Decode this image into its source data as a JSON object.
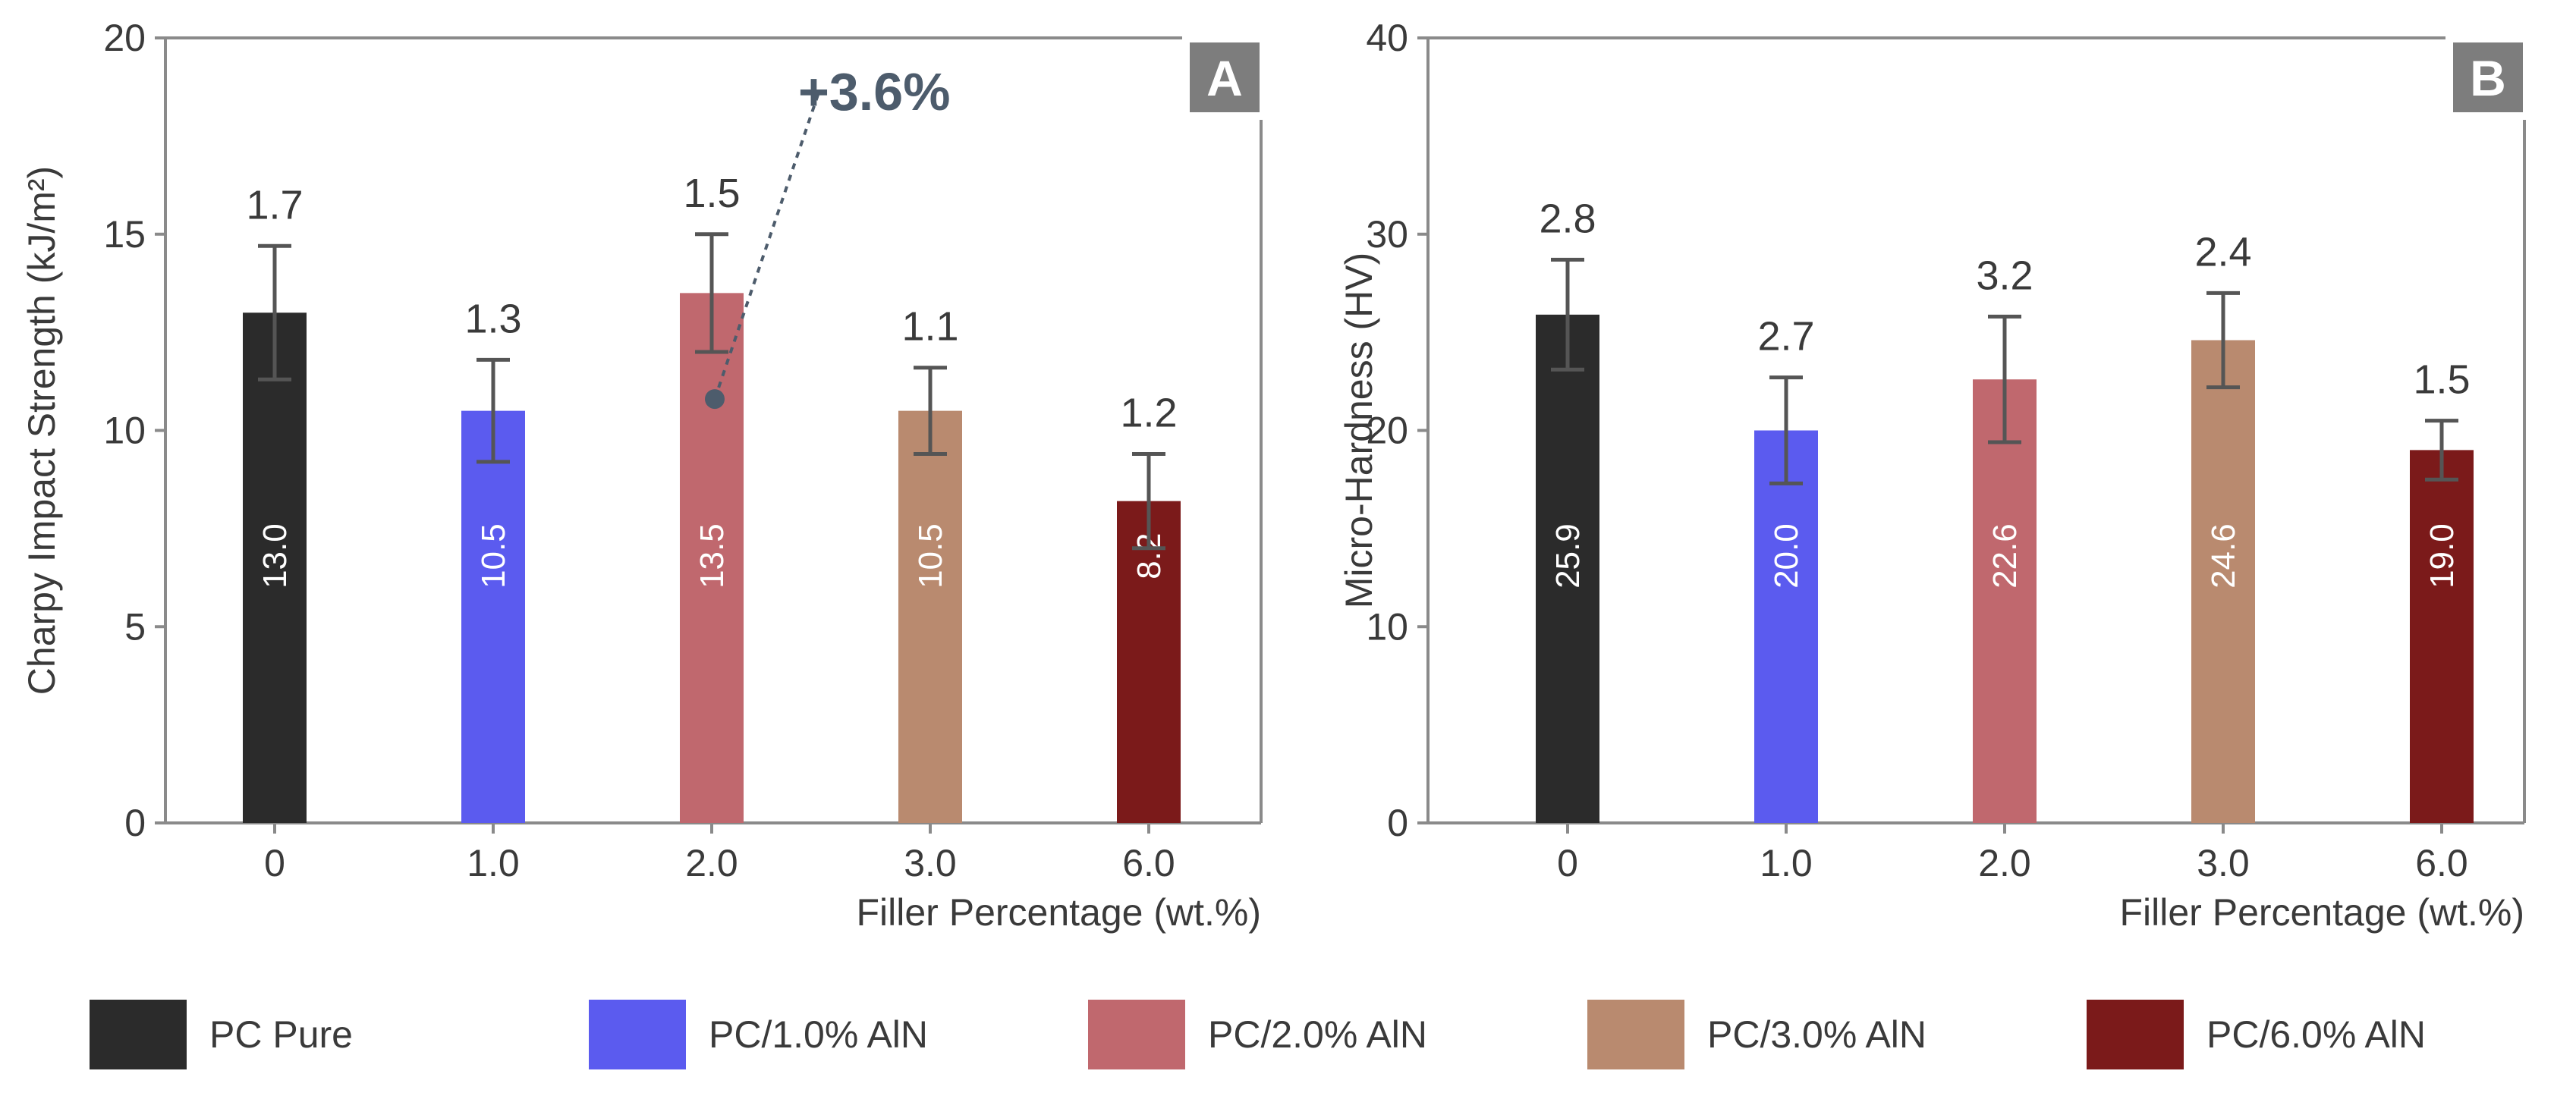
{
  "chart_data": [
    {
      "type": "bar",
      "panel": "A",
      "title": "",
      "xlabel": "Filler Percentage (wt.%)",
      "ylabel": "Charpy Impact Strength (kJ/m²)",
      "ylim": [
        0,
        20
      ],
      "yticks": [
        "0",
        "5",
        "10",
        "15",
        "20"
      ],
      "categories": [
        "0",
        "1.0",
        "2.0",
        "3.0",
        "6.0"
      ],
      "values": [
        13.0,
        10.5,
        13.5,
        10.5,
        8.2
      ],
      "value_labels": [
        "13.0",
        "10.5",
        "13.5",
        "10.5",
        "8.2"
      ],
      "errors": [
        1.7,
        1.3,
        1.5,
        1.1,
        1.2
      ],
      "error_labels": [
        "1.7",
        "1.3",
        "1.5",
        "1.1",
        "1.2"
      ],
      "annotation": {
        "text": "+3.6%",
        "category": "2.0",
        "point_value": 10.8
      },
      "grid": false
    },
    {
      "type": "bar",
      "panel": "B",
      "title": "",
      "xlabel": "Filler Percentage (wt.%)",
      "ylabel": "Micro-Hardness (HV)",
      "ylim": [
        0,
        40
      ],
      "yticks": [
        "0",
        "10",
        "20",
        "30",
        "40"
      ],
      "categories": [
        "0",
        "1.0",
        "2.0",
        "3.0",
        "6.0"
      ],
      "values": [
        25.9,
        20.0,
        22.6,
        24.6,
        19.0
      ],
      "value_labels": [
        "25.9",
        "20.0",
        "22.6",
        "24.6",
        "19.0"
      ],
      "errors": [
        2.8,
        2.7,
        3.2,
        2.4,
        1.5
      ],
      "error_labels": [
        "2.8",
        "2.7",
        "3.2",
        "2.4",
        "1.5"
      ],
      "grid": false
    }
  ],
  "legend": {
    "placement": "bottom",
    "items": [
      {
        "label": "PC Pure",
        "color": "#2b2b2b"
      },
      {
        "label": "PC/1.0% AlN",
        "color": "#5b5bef"
      },
      {
        "label": "PC/2.0% AlN",
        "color": "#c0686e"
      },
      {
        "label": "PC/3.0% AlN",
        "color": "#b98a6f"
      },
      {
        "label": "PC/6.0% AlN",
        "color": "#7b1a1a"
      }
    ]
  },
  "colors": {
    "axis": "#8a8a8a",
    "errorbar": "#555555",
    "badge": "#7d7d7d",
    "annotation": "#4d5c6c"
  }
}
